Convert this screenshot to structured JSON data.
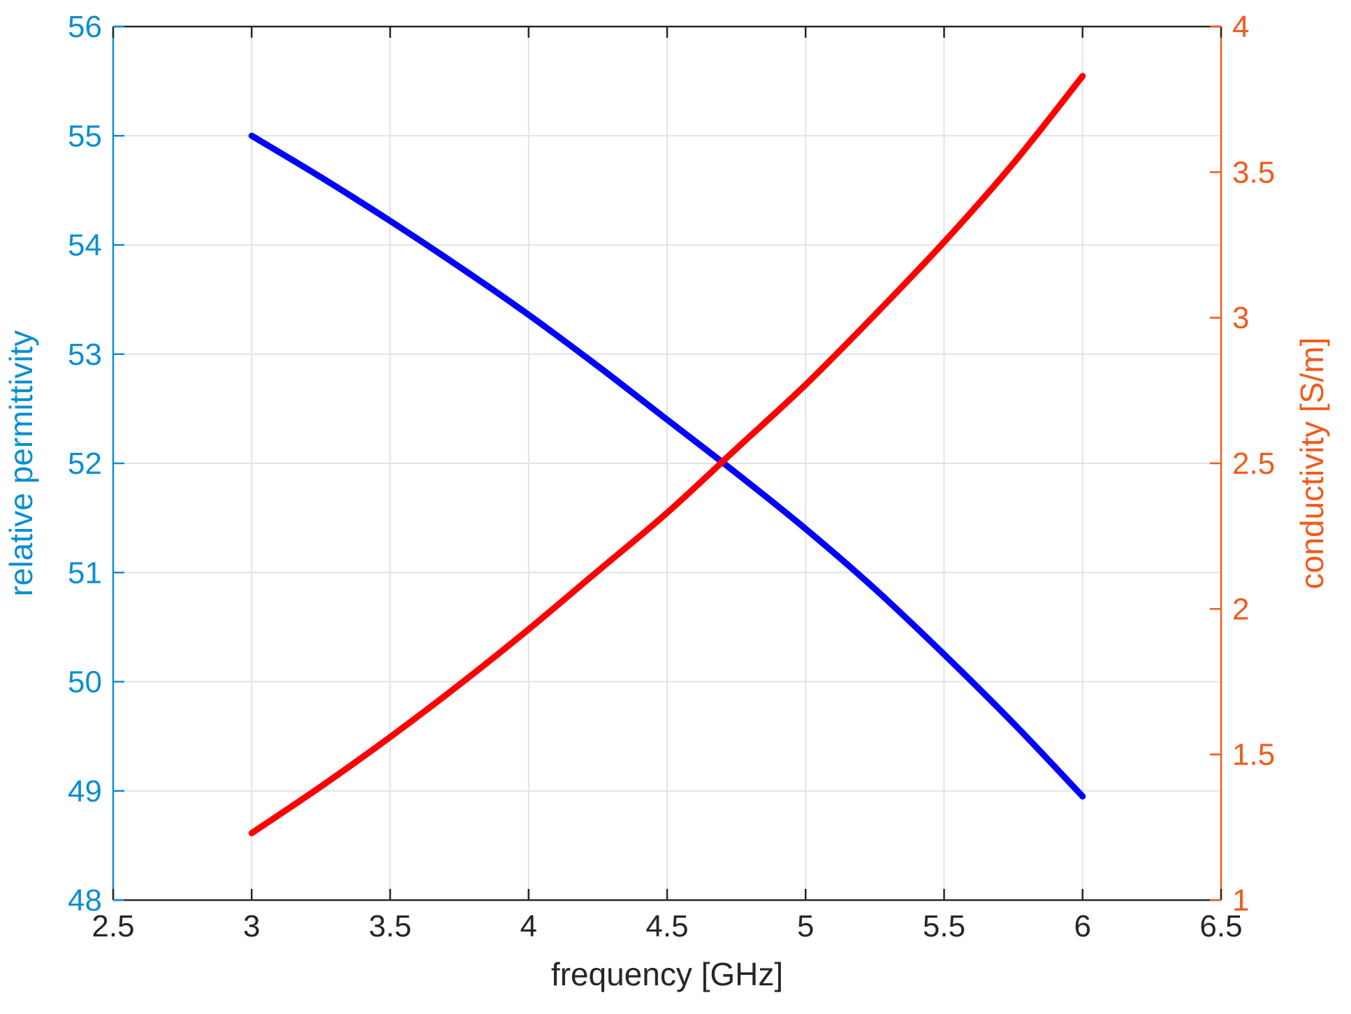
{
  "chart_data": {
    "type": "line",
    "xlabel": "frequency [GHz]",
    "ylabel_left": "relative permittivity",
    "ylabel_right": "conductivity [S/m]",
    "xlim": [
      2.5,
      6.5
    ],
    "ylim_left": [
      48,
      56
    ],
    "ylim_right": [
      1,
      4
    ],
    "xticks": [
      2.5,
      3,
      3.5,
      4,
      4.5,
      5,
      5.5,
      6,
      6.5
    ],
    "xtick_labels": [
      "2.5",
      "3",
      "3.5",
      "4",
      "4.5",
      "5",
      "5.5",
      "6",
      "6.5"
    ],
    "yticks_left": [
      48,
      49,
      50,
      51,
      52,
      53,
      54,
      55,
      56
    ],
    "ytick_labels_left": [
      "48",
      "49",
      "50",
      "51",
      "52",
      "53",
      "54",
      "55",
      "56"
    ],
    "yticks_right": [
      1,
      1.5,
      2,
      2.5,
      3,
      3.5,
      4
    ],
    "ytick_labels_right": [
      "1",
      "1.5",
      "2",
      "2.5",
      "3",
      "3.5",
      "4"
    ],
    "grid": true,
    "colors": {
      "left_axis": "#0a8fd0",
      "right_axis": "#f25a1c",
      "permittivity": "#0000ff",
      "conductivity": "#ff0000",
      "grid": "#dfe4ea"
    },
    "series": [
      {
        "axis": "left",
        "x": [
          3.0,
          3.25,
          3.5,
          3.75,
          4.0,
          4.25,
          4.5,
          4.75,
          5.0,
          5.25,
          5.5,
          5.75,
          6.0
        ],
        "values": [
          55.0,
          54.62,
          54.22,
          53.8,
          53.36,
          52.89,
          52.4,
          51.91,
          51.4,
          50.85,
          50.25,
          49.62,
          48.95
        ]
      },
      {
        "axis": "right",
        "x": [
          3.0,
          3.25,
          3.5,
          3.75,
          4.0,
          4.25,
          4.5,
          4.75,
          5.0,
          5.25,
          5.5,
          5.75,
          6.0
        ],
        "values": [
          1.23,
          1.39,
          1.56,
          1.74,
          1.93,
          2.13,
          2.33,
          2.55,
          2.77,
          3.01,
          3.26,
          3.53,
          3.83
        ]
      }
    ]
  }
}
